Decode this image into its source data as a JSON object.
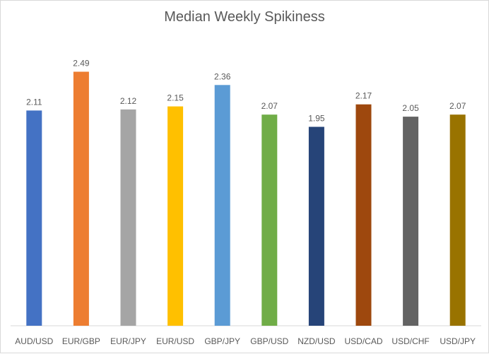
{
  "chart_data": {
    "type": "bar",
    "title": "Median Weekly Spikiness",
    "xlabel": "",
    "ylabel": "",
    "categories": [
      "AUD/USD",
      "EUR/GBP",
      "EUR/JPY",
      "EUR/USD",
      "GBP/JPY",
      "GBP/USD",
      "NZD/USD",
      "USD/CAD",
      "USD/CHF",
      "USD/JPY"
    ],
    "values": [
      2.11,
      2.49,
      2.12,
      2.15,
      2.36,
      2.07,
      1.95,
      2.17,
      2.05,
      2.07
    ],
    "data_labels": [
      "2.11",
      "2.49",
      "2.12",
      "2.15",
      "2.36",
      "2.07",
      "1.95",
      "2.17",
      "2.05",
      "2.07"
    ],
    "ylim": [
      0,
      2.75
    ],
    "grid": false,
    "legend": "none",
    "colors": [
      "#4472c4",
      "#ed7d31",
      "#a5a5a5",
      "#ffc000",
      "#5b9bd5",
      "#70ad47",
      "#264478",
      "#9e480e",
      "#636363",
      "#997300"
    ]
  }
}
